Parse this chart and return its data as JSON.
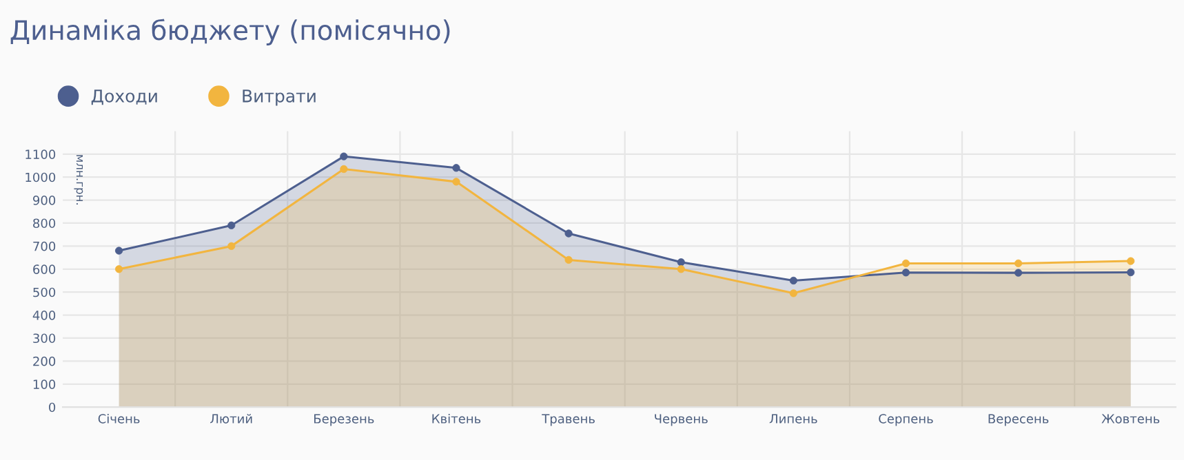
{
  "chart_data": {
    "type": "area",
    "title": "Динаміка бюджету (помісячно)",
    "ylabel": "млн.грн.",
    "categories": [
      "Січень",
      "Лютий",
      "Березень",
      "Квітень",
      "Травень",
      "Червень",
      "Липень",
      "Серпень",
      "Вересень",
      "Жовтень"
    ],
    "series": [
      {
        "name": "Доходи",
        "color": "#4d5f8f",
        "values": [
          680,
          790,
          1090,
          1040,
          755,
          630,
          550,
          585,
          584,
          586
        ]
      },
      {
        "name": "Витрати",
        "color": "#f2b53f",
        "values": [
          600,
          700,
          1035,
          980,
          640,
          600,
          495,
          625,
          625,
          635
        ]
      }
    ],
    "ylim": [
      0,
      1200
    ],
    "yticks": [
      0,
      100,
      200,
      300,
      400,
      500,
      600,
      700,
      800,
      900,
      1000,
      1100
    ],
    "grid": true,
    "legend": "top left",
    "marker": "circle"
  }
}
